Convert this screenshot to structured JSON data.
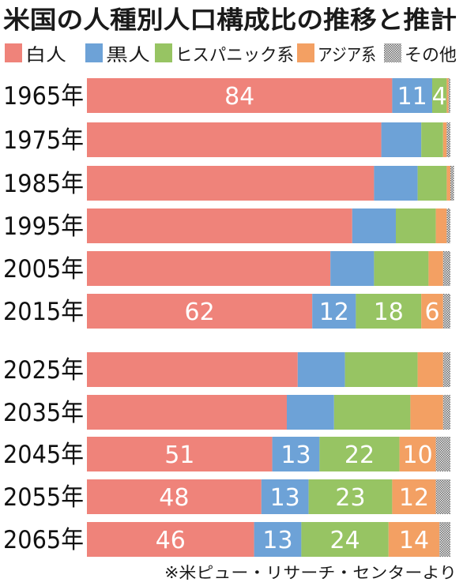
{
  "chart_data": {
    "type": "bar",
    "orientation": "horizontal",
    "stacked": true,
    "normalized_to": 100,
    "title": "米国の人種別人口構成比の推移と推計",
    "legend_position": "top",
    "grid": false,
    "xlim": [
      0,
      100
    ],
    "categories": [
      "1965年",
      "1975年",
      "1985年",
      "1995年",
      "2005年",
      "2015年",
      "2025年",
      "2035年",
      "2045年",
      "2055年",
      "2065年"
    ],
    "series": [
      {
        "name": "白人",
        "color": "#ef837a",
        "values": [
          84,
          81,
          79,
          73,
          67,
          62,
          58,
          55,
          51,
          48,
          46
        ]
      },
      {
        "name": "黒人",
        "color": "#6da2d7",
        "values": [
          11,
          11,
          12,
          12,
          12,
          12,
          13,
          13,
          13,
          13,
          13
        ]
      },
      {
        "name": "ヒスパニック系",
        "color": "#97c463",
        "values": [
          4,
          6,
          8,
          11,
          15,
          18,
          20,
          21,
          22,
          23,
          24
        ]
      },
      {
        "name": "アジア系",
        "color": "#f3a063",
        "values": [
          0.5,
          1,
          1,
          3,
          4,
          6,
          7,
          9,
          10,
          12,
          14
        ]
      },
      {
        "name": "その他",
        "color": "#8c8c8c",
        "values": [
          0.5,
          1,
          1,
          1,
          2,
          2,
          2,
          2,
          4,
          4,
          3
        ]
      }
    ],
    "labeled_rows": [
      "1965年",
      "2015年",
      "2045年",
      "2055年",
      "2065年"
    ],
    "footnote": "※米ピュー・リサーチ・センターより"
  }
}
